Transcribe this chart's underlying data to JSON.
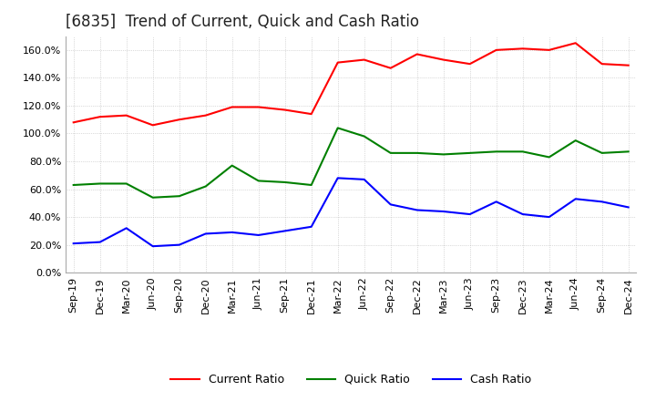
{
  "title": "[6835]  Trend of Current, Quick and Cash Ratio",
  "x_labels": [
    "Sep-19",
    "Dec-19",
    "Mar-20",
    "Jun-20",
    "Sep-20",
    "Dec-20",
    "Mar-21",
    "Jun-21",
    "Sep-21",
    "Dec-21",
    "Mar-22",
    "Jun-22",
    "Sep-22",
    "Dec-22",
    "Mar-23",
    "Jun-23",
    "Sep-23",
    "Dec-23",
    "Mar-24",
    "Jun-24",
    "Sep-24",
    "Dec-24"
  ],
  "current_ratio": [
    1.08,
    1.12,
    1.13,
    1.06,
    1.1,
    1.13,
    1.19,
    1.19,
    1.17,
    1.14,
    1.51,
    1.53,
    1.47,
    1.57,
    1.53,
    1.5,
    1.6,
    1.61,
    1.6,
    1.65,
    1.5,
    1.49
  ],
  "quick_ratio": [
    0.63,
    0.64,
    0.64,
    0.54,
    0.55,
    0.62,
    0.77,
    0.66,
    0.65,
    0.63,
    1.04,
    0.98,
    0.86,
    0.86,
    0.85,
    0.86,
    0.87,
    0.87,
    0.83,
    0.95,
    0.86,
    0.87
  ],
  "cash_ratio": [
    0.21,
    0.22,
    0.32,
    0.19,
    0.2,
    0.28,
    0.29,
    0.27,
    0.3,
    0.33,
    0.68,
    0.67,
    0.49,
    0.45,
    0.44,
    0.42,
    0.51,
    0.42,
    0.4,
    0.53,
    0.51,
    0.47
  ],
  "current_color": "#ff0000",
  "quick_color": "#008000",
  "cash_color": "#0000ff",
  "ylim": [
    0.0,
    1.7
  ],
  "yticks": [
    0.0,
    0.2,
    0.4,
    0.6,
    0.8,
    1.0,
    1.2,
    1.4,
    1.6
  ],
  "background_color": "#ffffff",
  "grid_color": "#aaaaaa",
  "title_fontsize": 12,
  "label_fontsize": 9,
  "tick_fontsize": 8
}
